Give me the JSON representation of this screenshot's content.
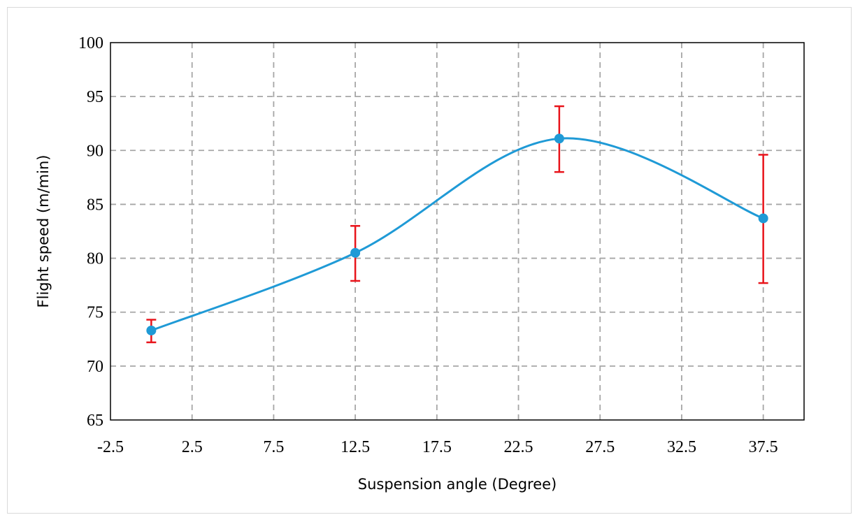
{
  "chart_data": {
    "type": "line",
    "title": "",
    "xlabel": "Suspension angle (Degree)",
    "ylabel": "Flight speed (m/min)",
    "xlim": [
      -2.5,
      40
    ],
    "ylim": [
      65,
      100
    ],
    "x_ticks": [
      "-2.5",
      "2.5",
      "7.5",
      "12.5",
      "17.5",
      "22.5",
      "27.5",
      "32.5",
      "37.5"
    ],
    "y_ticks": [
      "65",
      "70",
      "75",
      "80",
      "85",
      "90",
      "95",
      "100"
    ],
    "grid": true,
    "legend": "none",
    "series": [
      {
        "x": [
          0,
          12.5,
          25,
          37.5
        ],
        "y": [
          73.3,
          80.5,
          91.1,
          83.7
        ],
        "err_low": [
          72.2,
          77.9,
          88.0,
          77.7
        ],
        "err_high": [
          74.3,
          83.0,
          94.1,
          89.6
        ]
      }
    ],
    "colors": {
      "line": "#1f9ad6",
      "marker": "#1f9ad6",
      "error_bar": "#e8141b",
      "grid": "#a6a6a6"
    }
  }
}
